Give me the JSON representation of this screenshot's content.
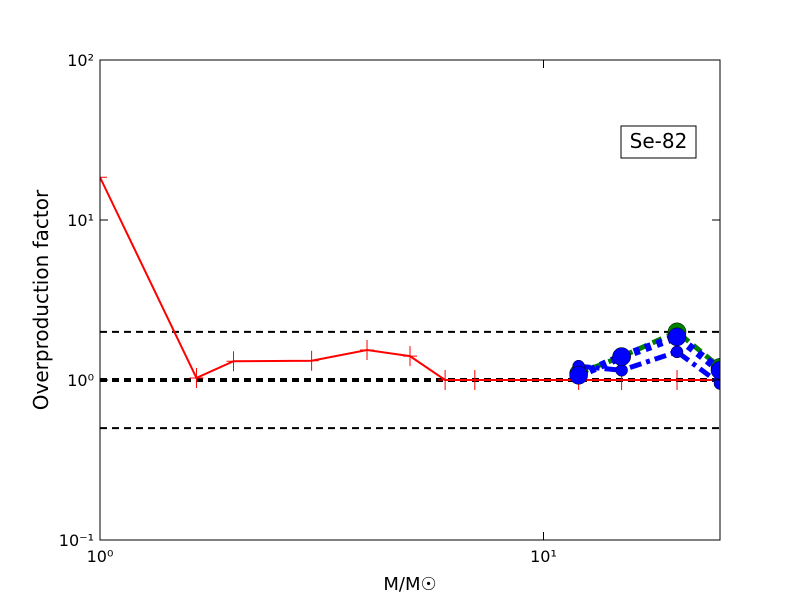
{
  "chart_data": {
    "type": "line",
    "xlabel": "M/M☉",
    "ylabel": "Overproduction factor",
    "annotation": "Se-82",
    "xscale": "log",
    "yscale": "log",
    "xlim": [
      1,
      25
    ],
    "ylim": [
      0.1,
      100
    ],
    "xticks": [
      {
        "value": 1,
        "label": "10⁰"
      },
      {
        "value": 10,
        "label": "10¹"
      }
    ],
    "yticks": [
      {
        "value": 0.1,
        "label": "10⁻¹"
      },
      {
        "value": 1,
        "label": "10⁰"
      },
      {
        "value": 10,
        "label": "10¹"
      },
      {
        "value": 100,
        "label": "10²"
      }
    ],
    "hlines": [
      2,
      1,
      0.5
    ],
    "series": [
      {
        "color": "#ff0000",
        "linestyle": "solid",
        "marker": "plus",
        "x": [
          1,
          1.65,
          2,
          3,
          4,
          5,
          6,
          7,
          12,
          15,
          20,
          25
        ],
        "values": [
          18.5,
          1.03,
          1.31,
          1.32,
          1.54,
          1.41,
          1,
          1,
          1,
          1,
          1,
          1
        ]
      },
      {
        "color": "#008000",
        "linestyle": "dashed",
        "marker": "bigcircle",
        "x": [
          12,
          15,
          20,
          25
        ],
        "values": [
          1.1,
          1.4,
          2.0,
          1.2
        ]
      },
      {
        "color": "#0000ff",
        "linestyle": "dashdot",
        "marker": "smallcircle",
        "x": [
          12,
          15,
          20,
          25
        ],
        "values": [
          1.22,
          1.15,
          1.5,
          0.95
        ]
      },
      {
        "color": "#0000ff",
        "linestyle": "dotted",
        "marker": "bigcircle",
        "x": [
          12,
          15,
          20,
          25
        ],
        "values": [
          1.07,
          1.4,
          1.86,
          1.15
        ]
      }
    ]
  }
}
